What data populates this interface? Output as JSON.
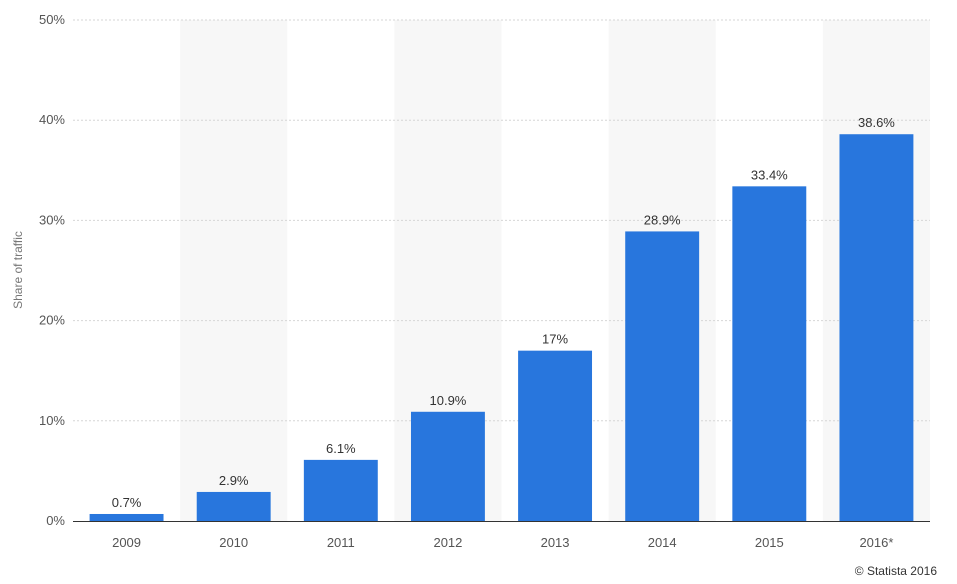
{
  "chart_data": {
    "type": "bar",
    "categories": [
      "2009",
      "2010",
      "2011",
      "2012",
      "2013",
      "2014",
      "2015",
      "2016*"
    ],
    "values": [
      0.7,
      2.9,
      6.1,
      10.9,
      17,
      28.9,
      33.4,
      38.6
    ],
    "value_labels": [
      "0.7%",
      "2.9%",
      "6.1%",
      "10.9%",
      "17%",
      "28.9%",
      "33.4%",
      "38.6%"
    ],
    "title": "",
    "xlabel": "",
    "ylabel": "Share of traffic",
    "ylim": [
      0,
      50
    ],
    "yticks": [
      0,
      10,
      20,
      30,
      40,
      50
    ],
    "ytick_labels": [
      "0%",
      "10%",
      "20%",
      "30%",
      "40%",
      "50%"
    ],
    "grid": true,
    "bar_color": "#2876dd",
    "band_color": "#f7f7f7",
    "grid_color": "#d6d6d6"
  },
  "footer": {
    "credit": "© Statista 2016"
  }
}
